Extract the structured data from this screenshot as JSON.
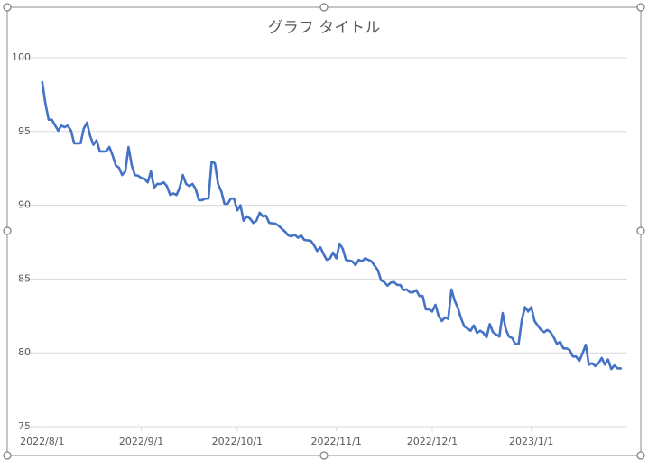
{
  "chart_data": {
    "type": "line",
    "title": "グラフ タイトル",
    "x": [
      "2022/8/1",
      "2022/8/2",
      "2022/8/3",
      "2022/8/4",
      "2022/8/6",
      "2022/8/7",
      "2022/8/8",
      "2022/8/9",
      "2022/8/10",
      "2022/8/11",
      "2022/8/13",
      "2022/8/14",
      "2022/8/15",
      "2022/8/16",
      "2022/8/17",
      "2022/8/18",
      "2022/8/19",
      "2022/8/21",
      "2022/8/22",
      "2022/8/23",
      "2022/8/24",
      "2022/8/25",
      "2022/8/26",
      "2022/8/27",
      "2022/8/28",
      "2022/8/29",
      "2022/8/30",
      "2022/8/31",
      "2022/9/1",
      "2022/9/2",
      "2022/9/3",
      "2022/9/4",
      "2022/9/5",
      "2022/9/6",
      "2022/9/7",
      "2022/9/8",
      "2022/9/9",
      "2022/9/10",
      "2022/9/11",
      "2022/9/12",
      "2022/9/13",
      "2022/9/14",
      "2022/9/15",
      "2022/9/16",
      "2022/9/17",
      "2022/9/18",
      "2022/9/19",
      "2022/9/20",
      "2022/9/21",
      "2022/9/22",
      "2022/9/23",
      "2022/9/24",
      "2022/9/25",
      "2022/9/26",
      "2022/9/27",
      "2022/9/28",
      "2022/9/29",
      "2022/9/30",
      "2022/10/1",
      "2022/10/2",
      "2022/10/3",
      "2022/10/4",
      "2022/10/5",
      "2022/10/6",
      "2022/10/7",
      "2022/10/8",
      "2022/10/9",
      "2022/10/10",
      "2022/10/11",
      "2022/10/13",
      "2022/10/14",
      "2022/10/15",
      "2022/10/16",
      "2022/10/17",
      "2022/10/18",
      "2022/10/19",
      "2022/10/20",
      "2022/10/21",
      "2022/10/22",
      "2022/10/24",
      "2022/10/25",
      "2022/10/26",
      "2022/10/27",
      "2022/10/28",
      "2022/10/29",
      "2022/10/30",
      "2022/10/31",
      "2022/11/1",
      "2022/11/2",
      "2022/11/3",
      "2022/11/4",
      "2022/11/6",
      "2022/11/7",
      "2022/11/8",
      "2022/11/9",
      "2022/11/10",
      "2022/11/11",
      "2022/11/12",
      "2022/11/13",
      "2022/11/14",
      "2022/11/15",
      "2022/11/16",
      "2022/11/17",
      "2022/11/18",
      "2022/11/19",
      "2022/11/20",
      "2022/11/21",
      "2022/11/22",
      "2022/11/23",
      "2022/11/24",
      "2022/11/25",
      "2022/11/26",
      "2022/11/27",
      "2022/11/28",
      "2022/11/29",
      "2022/11/30",
      "2022/12/1",
      "2022/12/2",
      "2022/12/3",
      "2022/12/4",
      "2022/12/5",
      "2022/12/6",
      "2022/12/7",
      "2022/12/8",
      "2022/12/9",
      "2022/12/10",
      "2022/12/11",
      "2022/12/12",
      "2022/12/13",
      "2022/12/14",
      "2022/12/15",
      "2022/12/16",
      "2022/12/17",
      "2022/12/18",
      "2022/12/19",
      "2022/12/20",
      "2022/12/21",
      "2022/12/22",
      "2022/12/23",
      "2022/12/24",
      "2022/12/25",
      "2022/12/26",
      "2022/12/27",
      "2022/12/28",
      "2022/12/29",
      "2022/12/30",
      "2022/12/31",
      "2023/1/1",
      "2023/1/2",
      "2023/1/3",
      "2023/1/4",
      "2023/1/5",
      "2023/1/6",
      "2023/1/7",
      "2023/1/8",
      "2023/1/9",
      "2023/1/10",
      "2023/1/11",
      "2023/1/12",
      "2023/1/13",
      "2023/1/14",
      "2023/1/15",
      "2023/1/16",
      "2023/1/17",
      "2023/1/18",
      "2023/1/19",
      "2023/1/20",
      "2023/1/21",
      "2023/1/22",
      "2023/1/23",
      "2023/1/24",
      "2023/1/25",
      "2023/1/26",
      "2023/1/27",
      "2023/1/28",
      "2023/1/29"
    ],
    "series": [
      {
        "color": "#4472c4",
        "values": [
          98.35,
          96.9,
          95.8,
          95.8,
          95.05,
          95.4,
          95.3,
          95.4,
          95.05,
          94.2,
          94.2,
          95.2,
          95.6,
          94.7,
          94.1,
          94.4,
          93.65,
          93.65,
          93.95,
          93.4,
          92.7,
          92.55,
          92.05,
          92.3,
          93.95,
          92.7,
          92.05,
          92.0,
          91.85,
          91.8,
          91.55,
          92.3,
          91.2,
          91.45,
          91.45,
          91.55,
          91.3,
          90.7,
          90.8,
          90.7,
          91.2,
          92.05,
          91.45,
          91.3,
          91.45,
          91.1,
          90.35,
          90.35,
          90.45,
          90.45,
          92.95,
          92.85,
          91.45,
          90.95,
          90.1,
          90.1,
          90.45,
          90.45,
          89.65,
          90.0,
          88.95,
          89.25,
          89.1,
          88.8,
          88.95,
          89.5,
          89.25,
          89.3,
          88.8,
          88.75,
          88.6,
          88.4,
          88.2,
          87.95,
          87.9,
          88.0,
          87.8,
          87.95,
          87.65,
          87.6,
          87.3,
          86.9,
          87.15,
          86.7,
          86.3,
          86.4,
          86.8,
          86.4,
          87.4,
          87.05,
          86.3,
          86.2,
          85.95,
          86.3,
          86.2,
          86.4,
          86.3,
          86.2,
          85.9,
          85.6,
          84.9,
          84.8,
          84.55,
          84.75,
          84.8,
          84.6,
          84.6,
          84.25,
          84.3,
          84.1,
          84.1,
          84.25,
          83.85,
          83.85,
          82.95,
          82.95,
          82.8,
          83.25,
          82.5,
          82.15,
          82.4,
          82.3,
          84.3,
          83.55,
          83.05,
          82.35,
          81.8,
          81.65,
          81.5,
          81.85,
          81.35,
          81.5,
          81.35,
          81.05,
          81.95,
          81.4,
          81.25,
          81.1,
          82.7,
          81.6,
          81.1,
          81.0,
          80.6,
          80.6,
          82.2,
          83.1,
          82.8,
          83.1,
          82.15,
          81.85,
          81.55,
          81.4,
          81.55,
          81.4,
          81.05,
          80.6,
          80.75,
          80.3,
          80.3,
          80.2,
          79.75,
          79.75,
          79.45,
          79.95,
          80.55,
          79.2,
          79.3,
          79.1,
          79.3,
          79.65,
          79.2,
          79.55,
          78.9,
          79.15,
          78.95,
          78.95
        ]
      }
    ],
    "xlim": [
      "2022/7/25",
      "2023/1/31"
    ],
    "xticks": [
      "2022/8/1",
      "2022/9/1",
      "2022/10/1",
      "2022/11/1",
      "2022/12/1",
      "2023/1/1"
    ],
    "ylim": [
      75,
      100
    ],
    "yticks": [
      75,
      80,
      85,
      90,
      95,
      100
    ],
    "grid": true
  }
}
